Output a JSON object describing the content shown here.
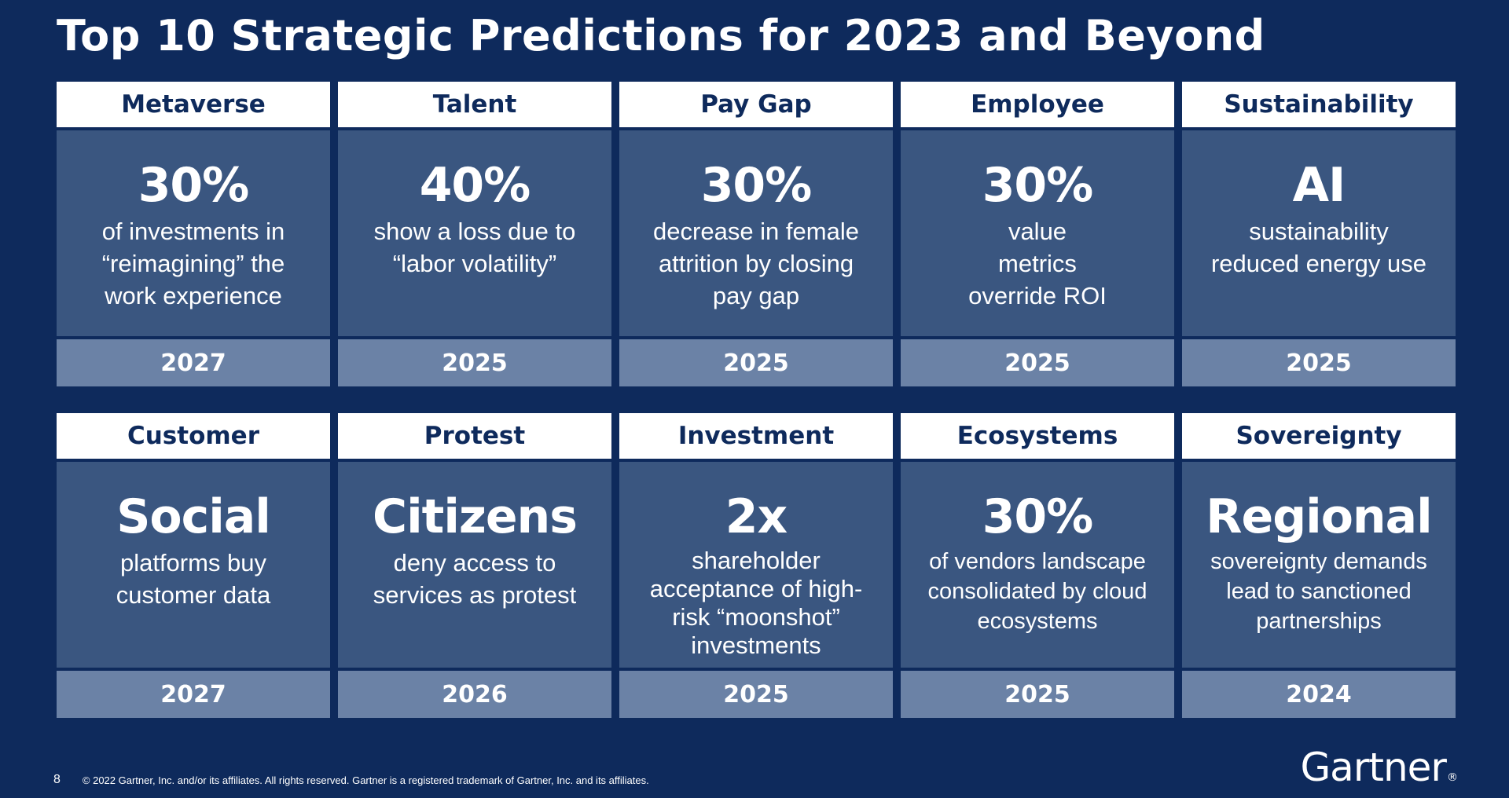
{
  "title": "Top 10 Strategic Predictions for 2023 and Beyond",
  "cards": [
    {
      "header": "Metaverse",
      "big": "30%",
      "desc": "of investments in\n“reimagining” the\nwork experience",
      "year": "2027"
    },
    {
      "header": "Talent",
      "big": "40%",
      "desc": "show a loss due to\n“labor volatility”",
      "year": "2025"
    },
    {
      "header": "Pay Gap",
      "big": "30%",
      "desc": "decrease in female\nattrition by closing\npay gap",
      "year": "2025"
    },
    {
      "header": "Employee",
      "big": "30%",
      "desc": "value\nmetrics\noverride ROI",
      "year": "2025"
    },
    {
      "header": "Sustainability",
      "big": "AI",
      "desc": "sustainability\nreduced energy use",
      "year": "2025"
    },
    {
      "header": "Customer",
      "big": "Social",
      "desc": "platforms buy\ncustomer data",
      "year": "2027"
    },
    {
      "header": "Protest",
      "big": "Citizens",
      "desc": "deny access to\nservices as protest",
      "year": "2026"
    },
    {
      "header": "Investment",
      "big": "2x",
      "desc": "shareholder\nacceptance of high-\nrisk “moonshot”\ninvestments",
      "year": "2025"
    },
    {
      "header": "Ecosystems",
      "big": "30%",
      "desc": "of vendors landscape\nconsolidated by cloud\necosystems",
      "year": "2025"
    },
    {
      "header": "Sovereignty",
      "big": "Regional",
      "desc": "sovereignty demands\nlead to sanctioned\npartnerships",
      "year": "2024"
    }
  ],
  "footer": {
    "page_number": "8",
    "copyright": "© 2022 Gartner, Inc. and/or its affiliates. All rights reserved. Gartner is a registered trademark of Gartner, Inc. and its affiliates."
  },
  "logo": {
    "text": "Gartner",
    "mark": "®"
  },
  "colors": {
    "background": "#0e2a5c",
    "card_body": "#3a5680",
    "card_year": "#6b82a6",
    "header_bg": "#ffffff"
  }
}
